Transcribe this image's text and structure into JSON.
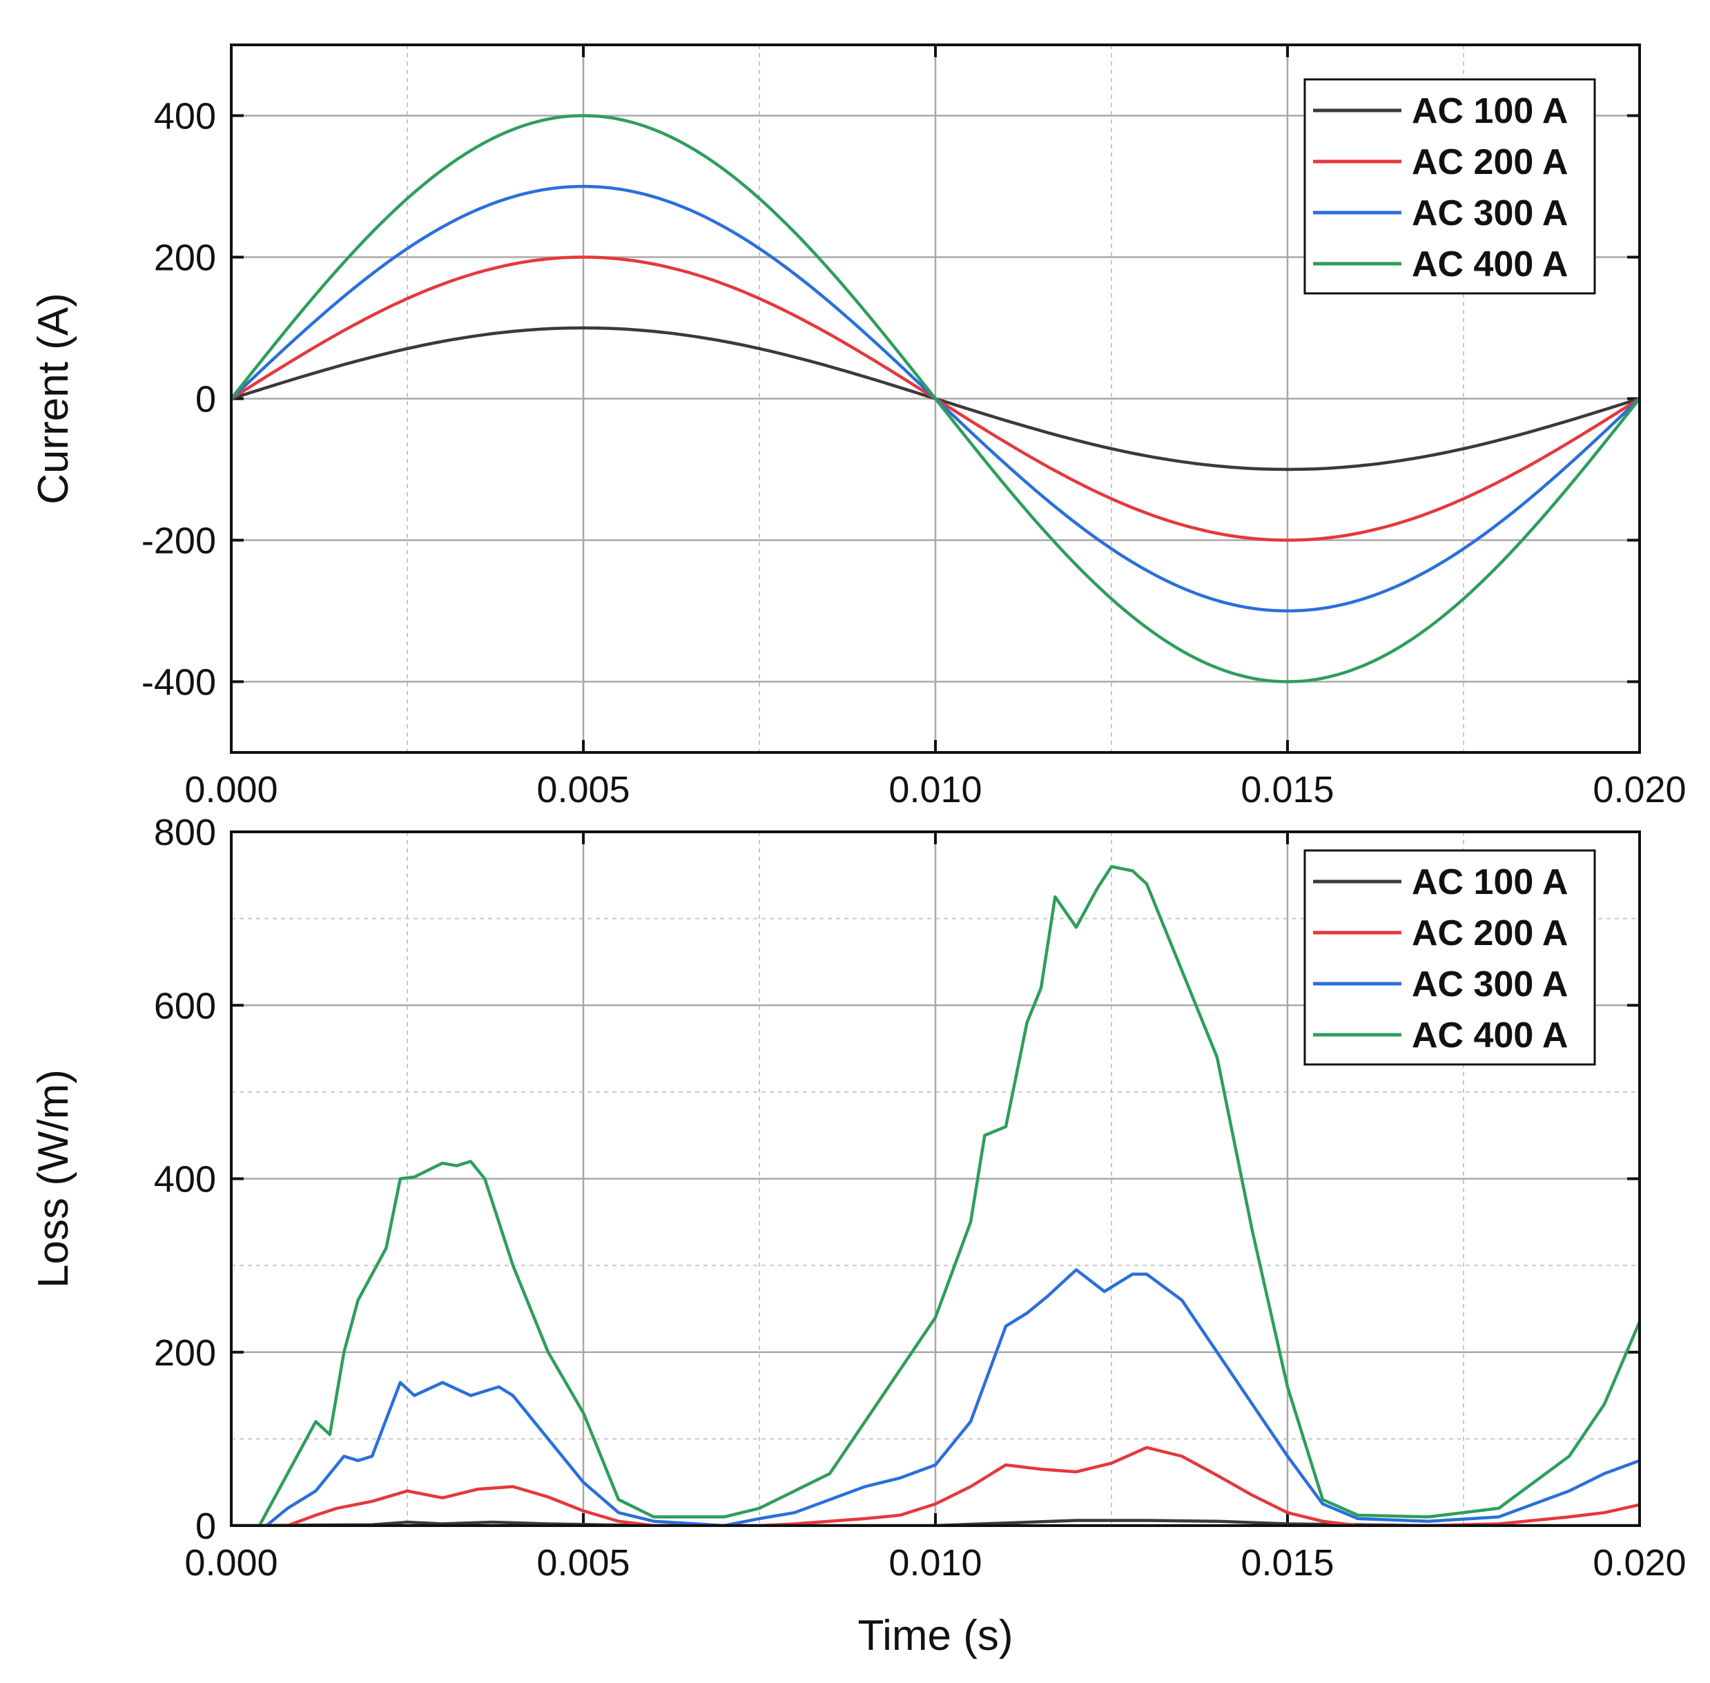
{
  "colors": {
    "AC 100 A": "#3a3a3a",
    "AC 200 A": "#e5383b",
    "AC 300 A": "#2a6fdb",
    "AC 400 A": "#2e9e5b",
    "grid": "#c8c8c8",
    "axis": "#111111"
  },
  "chart_data": [
    {
      "type": "line",
      "id": "current",
      "title": "",
      "xlabel": "",
      "ylabel": "Current (A)",
      "xlim": [
        0,
        0.02
      ],
      "ylim": [
        -500,
        500
      ],
      "x_ticks": [
        0.0,
        0.005,
        0.01,
        0.015,
        0.02
      ],
      "x_tick_labels": [
        "0.000",
        "0.005",
        "0.010",
        "0.015",
        "0.020"
      ],
      "y_ticks": [
        -400,
        -200,
        0,
        200,
        400
      ],
      "y_tick_labels": [
        "-400",
        "-200",
        "0",
        "200",
        "400"
      ],
      "grid": true,
      "legend_position": "top-right",
      "x": [
        0,
        0.001,
        0.002,
        0.003,
        0.004,
        0.005,
        0.006,
        0.007,
        0.008,
        0.009,
        0.01,
        0.011,
        0.012,
        0.013,
        0.014,
        0.015,
        0.016,
        0.017,
        0.018,
        0.019,
        0.02
      ],
      "series": [
        {
          "name": "AC 100 A",
          "values": [
            0,
            31,
            59,
            81,
            95,
            100,
            95,
            81,
            59,
            31,
            0,
            -31,
            -59,
            -81,
            -95,
            -100,
            -95,
            -81,
            -59,
            -31,
            0
          ]
        },
        {
          "name": "AC 200 A",
          "values": [
            0,
            62,
            118,
            162,
            190,
            200,
            190,
            162,
            118,
            62,
            0,
            -62,
            -118,
            -162,
            -190,
            -200,
            -190,
            -162,
            -118,
            -62,
            0
          ]
        },
        {
          "name": "AC 300 A",
          "values": [
            0,
            93,
            176,
            243,
            285,
            300,
            285,
            243,
            176,
            93,
            0,
            -93,
            -176,
            -243,
            -285,
            -300,
            -285,
            -243,
            -176,
            -93,
            0
          ]
        },
        {
          "name": "AC 400 A",
          "values": [
            0,
            124,
            235,
            324,
            380,
            400,
            380,
            324,
            235,
            124,
            0,
            -124,
            -235,
            -324,
            -380,
            -400,
            -380,
            -324,
            -235,
            -124,
            0
          ]
        }
      ]
    },
    {
      "type": "line",
      "id": "loss",
      "title": "",
      "xlabel": "Time (s)",
      "ylabel": "Loss (W/m)",
      "xlim": [
        0,
        0.02
      ],
      "ylim": [
        0,
        800
      ],
      "x_ticks": [
        0.0,
        0.005,
        0.01,
        0.015,
        0.02
      ],
      "x_tick_labels": [
        "0.000",
        "0.005",
        "0.010",
        "0.015",
        "0.020"
      ],
      "y_ticks": [
        0,
        200,
        400,
        600,
        800
      ],
      "y_tick_labels": [
        "0",
        "200",
        "400",
        "600",
        "800"
      ],
      "grid": true,
      "legend_position": "top-right",
      "series": [
        {
          "name": "AC 100 A",
          "x": [
            0,
            0.002,
            0.0025,
            0.003,
            0.0037,
            0.0045,
            0.006,
            0.01,
            0.011,
            0.012,
            0.013,
            0.014,
            0.015,
            0.017,
            0.02
          ],
          "values": [
            0,
            1,
            4,
            2,
            4,
            2,
            0,
            0,
            3,
            6,
            6,
            5,
            2,
            0,
            0
          ]
        },
        {
          "name": "AC 200 A",
          "x": [
            0,
            0.0008,
            0.0012,
            0.0015,
            0.002,
            0.0025,
            0.003,
            0.0035,
            0.004,
            0.0045,
            0.005,
            0.0055,
            0.006,
            0.007,
            0.0075,
            0.008,
            0.009,
            0.0095,
            0.01,
            0.0105,
            0.011,
            0.0115,
            0.012,
            0.0125,
            0.013,
            0.0135,
            0.014,
            0.0145,
            0.015,
            0.0155,
            0.016,
            0.017,
            0.018,
            0.019,
            0.0195,
            0.02
          ],
          "values": [
            0,
            0,
            12,
            20,
            28,
            40,
            32,
            42,
            45,
            33,
            17,
            5,
            0,
            0,
            0,
            2,
            8,
            12,
            25,
            45,
            70,
            65,
            62,
            72,
            90,
            80,
            58,
            35,
            15,
            5,
            0,
            0,
            2,
            10,
            15,
            24
          ]
        },
        {
          "name": "AC 300 A",
          "x": [
            0,
            0.0005,
            0.0008,
            0.0012,
            0.0016,
            0.0018,
            0.002,
            0.0024,
            0.0026,
            0.003,
            0.0034,
            0.0038,
            0.004,
            0.0045,
            0.005,
            0.0055,
            0.006,
            0.007,
            0.0075,
            0.008,
            0.009,
            0.0095,
            0.01,
            0.0105,
            0.011,
            0.0113,
            0.0116,
            0.012,
            0.0124,
            0.0128,
            0.013,
            0.0135,
            0.014,
            0.0145,
            0.015,
            0.0155,
            0.016,
            0.017,
            0.018,
            0.019,
            0.0195,
            0.02
          ],
          "values": [
            0,
            0,
            20,
            40,
            80,
            75,
            80,
            165,
            150,
            165,
            150,
            160,
            150,
            100,
            50,
            15,
            5,
            0,
            8,
            15,
            45,
            55,
            70,
            120,
            230,
            245,
            265,
            295,
            270,
            290,
            290,
            260,
            200,
            140,
            80,
            25,
            8,
            5,
            10,
            40,
            60,
            75
          ]
        },
        {
          "name": "AC 400 A",
          "x": [
            0,
            0.0004,
            0.0008,
            0.0012,
            0.0014,
            0.0016,
            0.0018,
            0.002,
            0.0022,
            0.0024,
            0.0026,
            0.0028,
            0.003,
            0.0032,
            0.0034,
            0.0036,
            0.0038,
            0.004,
            0.0045,
            0.005,
            0.0055,
            0.006,
            0.007,
            0.0075,
            0.008,
            0.0085,
            0.009,
            0.0095,
            0.01,
            0.0105,
            0.0107,
            0.011,
            0.0113,
            0.0115,
            0.0117,
            0.012,
            0.0123,
            0.0125,
            0.0128,
            0.013,
            0.0133,
            0.0136,
            0.014,
            0.0145,
            0.015,
            0.0155,
            0.016,
            0.017,
            0.018,
            0.019,
            0.0195,
            0.02
          ],
          "values": [
            0,
            0,
            60,
            120,
            105,
            200,
            260,
            290,
            320,
            400,
            402,
            410,
            418,
            415,
            420,
            400,
            350,
            300,
            200,
            130,
            30,
            10,
            10,
            20,
            40,
            60,
            120,
            180,
            240,
            350,
            450,
            460,
            580,
            620,
            725,
            690,
            735,
            760,
            755,
            740,
            680,
            620,
            540,
            340,
            160,
            30,
            12,
            10,
            20,
            80,
            140,
            235
          ]
        }
      ]
    }
  ]
}
